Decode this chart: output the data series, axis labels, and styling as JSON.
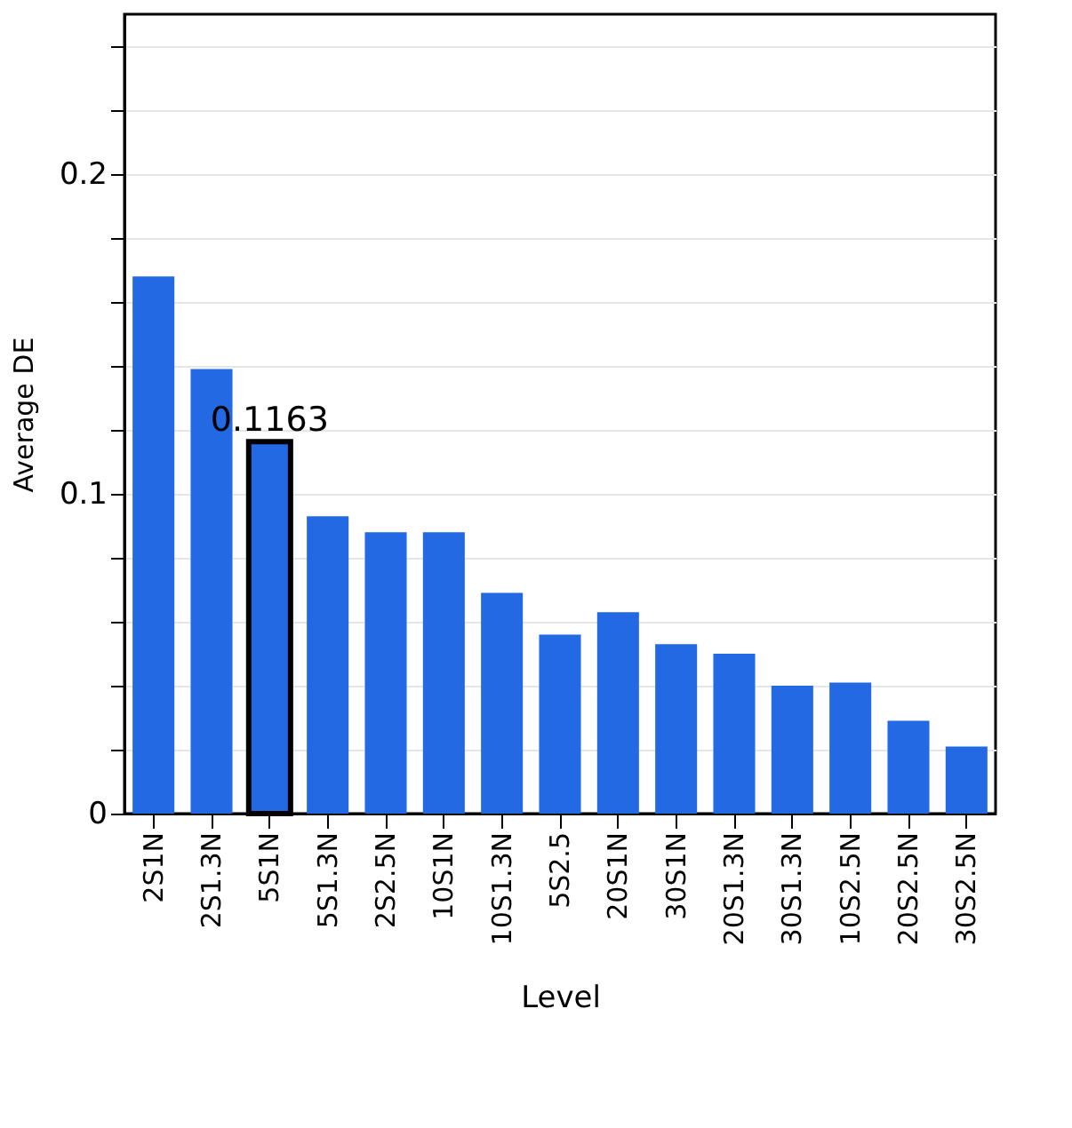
{
  "chart_data": {
    "type": "bar",
    "xlabel": "Level",
    "ylabel": "Average DE",
    "categories": [
      "2S1N",
      "2S1.3N",
      "5S1N",
      "5S1.3N",
      "2S2.5N",
      "10S1N",
      "10S1.3N",
      "5S2.5",
      "20S1N",
      "30S1N",
      "20S1.3N",
      "30S1.3N",
      "10S2.5N",
      "20S2.5N",
      "30S2.5N"
    ],
    "values": [
      0.168,
      0.139,
      0.1163,
      0.093,
      0.088,
      0.088,
      0.069,
      0.056,
      0.063,
      0.053,
      0.05,
      0.04,
      0.041,
      0.029,
      0.021
    ],
    "color": "#2369e3",
    "ylim": [
      0,
      0.25
    ],
    "yticks": [
      0,
      {
        "value": 0.02,
        "label": null
      },
      {
        "value": 0.04,
        "label": null
      },
      {
        "value": 0.06,
        "label": null
      },
      {
        "value": 0.08,
        "label": null
      },
      0.1,
      {
        "value": 0.12,
        "label": null
      },
      {
        "value": 0.14,
        "label": null
      },
      {
        "value": 0.16,
        "label": null
      },
      {
        "value": 0.18,
        "label": null
      },
      0.2,
      {
        "value": 0.22,
        "label": null
      },
      {
        "value": 0.24,
        "label": null
      }
    ],
    "grid": "y",
    "annotations": [
      {
        "text": "0.1163",
        "x": "5S1N",
        "y": 0.1163
      }
    ]
  }
}
